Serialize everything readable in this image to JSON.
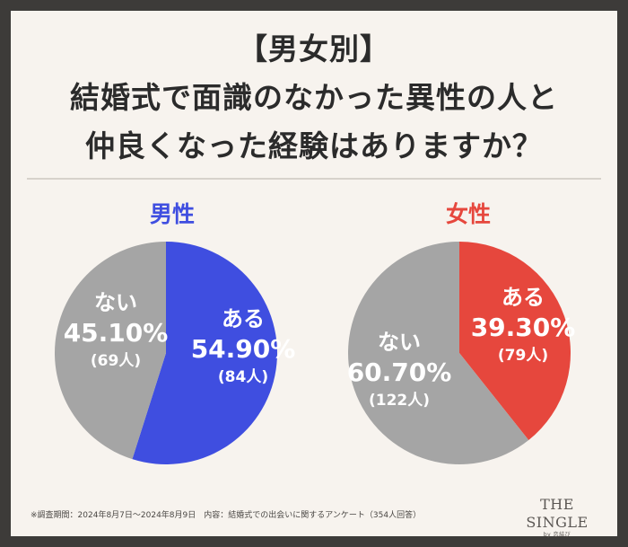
{
  "header": {
    "line1": "【男女別】",
    "line2": "結婚式で面識のなかった異性の人と",
    "line3": "仲良くなった経験はありますか？"
  },
  "chart_data": [
    {
      "type": "pie",
      "title": "男性",
      "slices": [
        {
          "label": "ある",
          "value": 54.9,
          "value_text": "54.90%",
          "count": "(84人)",
          "color": "#3f4ee0"
        },
        {
          "label": "ない",
          "value": 45.1,
          "value_text": "45.10%",
          "count": "(69人)",
          "color": "#a5a5a5"
        }
      ]
    },
    {
      "type": "pie",
      "title": "女性",
      "slices": [
        {
          "label": "ある",
          "value": 39.3,
          "value_text": "39.30%",
          "count": "(79人)",
          "color": "#e6473d"
        },
        {
          "label": "ない",
          "value": 60.7,
          "value_text": "60.70%",
          "count": "(122人)",
          "color": "#a5a5a5"
        }
      ]
    }
  ],
  "colors": {
    "male_title": "#3f4ee0",
    "female_title": "#e6473d"
  },
  "footer": {
    "note": "※調査期間：2024年8月7日～2024年8月9日　内容：結婚式での出会いに関するアンケート（354人回答）"
  },
  "brand": {
    "name": "THE SINGLE",
    "sub": "by 恋結び"
  }
}
